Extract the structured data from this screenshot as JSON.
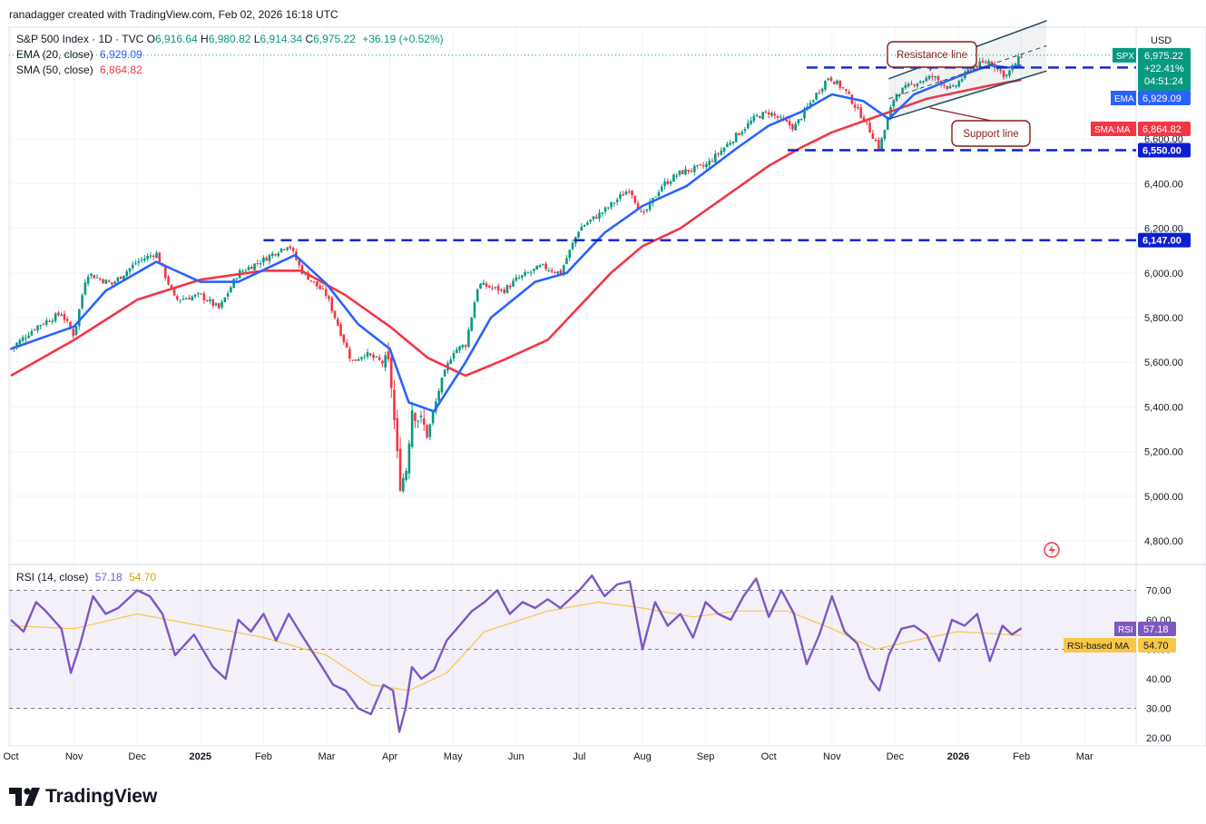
{
  "header": {
    "credit": "ranadagger created with TradingView.com, Feb 02, 2026 16:18 UTC"
  },
  "legend": {
    "symbol": "S&P 500 Index · 1D · TVC",
    "ohlc": [
      {
        "k": "O",
        "v": "6,916.64"
      },
      {
        "k": "H",
        "v": "6,980.82"
      },
      {
        "k": "L",
        "v": "6,914.34"
      },
      {
        "k": "C",
        "v": "6,975.22"
      }
    ],
    "change": "+36.19 (+0.52%)",
    "ema_label": "EMA (20, close)",
    "ema_value": "6,929.09",
    "sma_label": "SMA (50, close)",
    "sma_value": "6,864.82",
    "rsi_label": "RSI (14, close)",
    "rsi_value": "57.18",
    "rsi_ma_value": "54.70"
  },
  "logo": {
    "text": "TradingView"
  },
  "colors": {
    "up": "#089981",
    "down": "#f23645",
    "ema": "#2962ff",
    "sma": "#f23645",
    "level": "#0d1fd1",
    "rsi": "#7e57c2",
    "rsi_ma": "#f7c747",
    "channel": "#1f4f5f"
  },
  "chart_data": [
    {
      "type": "candlestick",
      "title": "S&P 500 Index · 1D · TVC",
      "currency": "USD",
      "ylim": [
        4700,
        7100
      ],
      "y_ticks": [
        "4,800.00",
        "5,000.00",
        "5,200.00",
        "5,400.00",
        "5,600.00",
        "5,800.00",
        "6,000.00",
        "6,200.00",
        "6,400.00",
        "6,600.00"
      ],
      "x_labels": [
        "Oct",
        "Nov",
        "Dec",
        "2025",
        "Feb",
        "Mar",
        "Apr",
        "May",
        "Jun",
        "Jul",
        "Aug",
        "Sep",
        "Oct",
        "Nov",
        "Dec",
        "2026",
        "Feb",
        "Mar"
      ],
      "x_label_months": [
        0,
        1,
        2,
        3,
        4,
        5,
        6,
        7,
        8,
        9,
        10,
        11,
        12,
        13,
        14,
        15,
        16,
        17
      ],
      "close_path": [
        {
          "m": 0.0,
          "c": 5660
        },
        {
          "m": 0.4,
          "c": 5760
        },
        {
          "m": 0.8,
          "c": 5820
        },
        {
          "m": 1.0,
          "c": 5720
        },
        {
          "m": 1.2,
          "c": 6000
        },
        {
          "m": 1.6,
          "c": 5950
        },
        {
          "m": 2.0,
          "c": 6050
        },
        {
          "m": 2.3,
          "c": 6090
        },
        {
          "m": 2.6,
          "c": 5880
        },
        {
          "m": 3.0,
          "c": 5900
        },
        {
          "m": 3.3,
          "c": 5840
        },
        {
          "m": 3.6,
          "c": 6000
        },
        {
          "m": 4.0,
          "c": 6060
        },
        {
          "m": 4.4,
          "c": 6130
        },
        {
          "m": 4.6,
          "c": 6010
        },
        {
          "m": 5.0,
          "c": 5900
        },
        {
          "m": 5.4,
          "c": 5600
        },
        {
          "m": 5.6,
          "c": 5640
        },
        {
          "m": 6.0,
          "c": 5580
        },
        {
          "m": 6.15,
          "c": 5060
        },
        {
          "m": 6.25,
          "c": 5100
        },
        {
          "m": 6.35,
          "c": 5400
        },
        {
          "m": 6.6,
          "c": 5280
        },
        {
          "m": 6.8,
          "c": 5500
        },
        {
          "m": 7.0,
          "c": 5650
        },
        {
          "m": 7.2,
          "c": 5680
        },
        {
          "m": 7.4,
          "c": 5950
        },
        {
          "m": 7.8,
          "c": 5920
        },
        {
          "m": 8.0,
          "c": 5970
        },
        {
          "m": 8.4,
          "c": 6030
        },
        {
          "m": 8.7,
          "c": 6000
        },
        {
          "m": 9.0,
          "c": 6200
        },
        {
          "m": 9.4,
          "c": 6280
        },
        {
          "m": 9.8,
          "c": 6380
        },
        {
          "m": 10.0,
          "c": 6250
        },
        {
          "m": 10.3,
          "c": 6390
        },
        {
          "m": 10.6,
          "c": 6450
        },
        {
          "m": 11.0,
          "c": 6480
        },
        {
          "m": 11.5,
          "c": 6620
        },
        {
          "m": 11.8,
          "c": 6700
        },
        {
          "m": 12.0,
          "c": 6720
        },
        {
          "m": 12.4,
          "c": 6650
        },
        {
          "m": 12.7,
          "c": 6780
        },
        {
          "m": 12.95,
          "c": 6880
        },
        {
          "m": 13.2,
          "c": 6820
        },
        {
          "m": 13.5,
          "c": 6690
        },
        {
          "m": 13.75,
          "c": 6560
        },
        {
          "m": 14.0,
          "c": 6800
        },
        {
          "m": 14.3,
          "c": 6850
        },
        {
          "m": 14.6,
          "c": 6880
        },
        {
          "m": 14.9,
          "c": 6820
        },
        {
          "m": 15.2,
          "c": 6920
        },
        {
          "m": 15.5,
          "c": 6950
        },
        {
          "m": 15.75,
          "c": 6880
        },
        {
          "m": 16.0,
          "c": 6975
        }
      ],
      "ema20": [
        {
          "m": 0.0,
          "c": 5660
        },
        {
          "m": 1.0,
          "c": 5760
        },
        {
          "m": 1.5,
          "c": 5920
        },
        {
          "m": 2.3,
          "c": 6050
        },
        {
          "m": 3.0,
          "c": 5960
        },
        {
          "m": 3.6,
          "c": 5960
        },
        {
          "m": 4.5,
          "c": 6080
        },
        {
          "m": 5.0,
          "c": 5950
        },
        {
          "m": 5.5,
          "c": 5770
        },
        {
          "m": 6.0,
          "c": 5660
        },
        {
          "m": 6.3,
          "c": 5420
        },
        {
          "m": 6.7,
          "c": 5380
        },
        {
          "m": 7.2,
          "c": 5600
        },
        {
          "m": 7.6,
          "c": 5800
        },
        {
          "m": 8.3,
          "c": 5960
        },
        {
          "m": 8.8,
          "c": 6000
        },
        {
          "m": 9.4,
          "c": 6180
        },
        {
          "m": 10.0,
          "c": 6300
        },
        {
          "m": 10.7,
          "c": 6390
        },
        {
          "m": 11.5,
          "c": 6560
        },
        {
          "m": 12.0,
          "c": 6660
        },
        {
          "m": 12.5,
          "c": 6720
        },
        {
          "m": 13.0,
          "c": 6800
        },
        {
          "m": 13.5,
          "c": 6770
        },
        {
          "m": 13.9,
          "c": 6690
        },
        {
          "m": 14.3,
          "c": 6800
        },
        {
          "m": 15.0,
          "c": 6880
        },
        {
          "m": 15.5,
          "c": 6930
        },
        {
          "m": 15.8,
          "c": 6920
        },
        {
          "m": 16.0,
          "c": 6929
        }
      ],
      "sma50": [
        {
          "m": 0.0,
          "c": 5540
        },
        {
          "m": 1.0,
          "c": 5700
        },
        {
          "m": 2.0,
          "c": 5880
        },
        {
          "m": 3.0,
          "c": 5970
        },
        {
          "m": 4.0,
          "c": 6010
        },
        {
          "m": 4.6,
          "c": 6010
        },
        {
          "m": 5.3,
          "c": 5900
        },
        {
          "m": 6.0,
          "c": 5760
        },
        {
          "m": 6.6,
          "c": 5620
        },
        {
          "m": 7.2,
          "c": 5540
        },
        {
          "m": 7.8,
          "c": 5610
        },
        {
          "m": 8.5,
          "c": 5700
        },
        {
          "m": 9.0,
          "c": 5850
        },
        {
          "m": 9.5,
          "c": 6000
        },
        {
          "m": 10.0,
          "c": 6120
        },
        {
          "m": 10.6,
          "c": 6200
        },
        {
          "m": 11.5,
          "c": 6380
        },
        {
          "m": 12.0,
          "c": 6480
        },
        {
          "m": 12.5,
          "c": 6560
        },
        {
          "m": 13.0,
          "c": 6630
        },
        {
          "m": 13.5,
          "c": 6680
        },
        {
          "m": 14.0,
          "c": 6730
        },
        {
          "m": 14.5,
          "c": 6780
        },
        {
          "m": 15.0,
          "c": 6810
        },
        {
          "m": 15.5,
          "c": 6840
        },
        {
          "m": 16.0,
          "c": 6865
        }
      ],
      "levels": [
        {
          "label": "6,920.00",
          "value": 6920,
          "from_m": 12.6
        },
        {
          "label": "6,550.00",
          "value": 6550,
          "from_m": 12.3
        },
        {
          "label": "6,147.00",
          "value": 6147,
          "from_m": 4.0
        }
      ],
      "channel": {
        "upper": [
          {
            "m": 13.9,
            "c": 6870
          },
          {
            "m": 16.4,
            "c": 7130
          }
        ],
        "lower": [
          {
            "m": 13.9,
            "c": 6690
          },
          {
            "m": 16.4,
            "c": 6905
          }
        ],
        "mid": [
          {
            "m": 13.9,
            "c": 6780
          },
          {
            "m": 16.4,
            "c": 7018
          }
        ]
      },
      "annotations": [
        {
          "text": "Resistance line",
          "target_m": 14.55,
          "target_c": 6905
        },
        {
          "text": "Support line",
          "target_m": 14.55,
          "target_c": 6740
        }
      ],
      "price_tags": [
        {
          "name": "SPX",
          "lines": [
            "6,975.22",
            "+22.41%",
            "04:51:24"
          ],
          "price": 6975.22
        },
        {
          "name": "EMA",
          "value": "6,929.09",
          "price": 6929.09
        },
        {
          "name": "SMA:MA",
          "value": "6,864.82",
          "price": 6864.82
        }
      ]
    },
    {
      "type": "line",
      "title": "RSI (14, close)",
      "ylim": [
        18,
        77
      ],
      "y_ticks": [
        "20.00",
        "30.00",
        "40.00",
        "50.00",
        "60.00",
        "70.00"
      ],
      "bands": {
        "upper": 70,
        "middle": 50,
        "lower": 30
      },
      "series": [
        {
          "name": "RSI",
          "last": "57.18",
          "points": [
            {
              "m": 0.0,
              "v": 60
            },
            {
              "m": 0.2,
              "v": 56
            },
            {
              "m": 0.4,
              "v": 66
            },
            {
              "m": 0.55,
              "v": 63
            },
            {
              "m": 0.8,
              "v": 57
            },
            {
              "m": 0.95,
              "v": 42
            },
            {
              "m": 1.1,
              "v": 52
            },
            {
              "m": 1.3,
              "v": 68
            },
            {
              "m": 1.5,
              "v": 62
            },
            {
              "m": 1.7,
              "v": 64
            },
            {
              "m": 2.0,
              "v": 70
            },
            {
              "m": 2.2,
              "v": 68
            },
            {
              "m": 2.4,
              "v": 62
            },
            {
              "m": 2.6,
              "v": 48
            },
            {
              "m": 2.9,
              "v": 55
            },
            {
              "m": 3.2,
              "v": 44
            },
            {
              "m": 3.4,
              "v": 40
            },
            {
              "m": 3.6,
              "v": 60
            },
            {
              "m": 3.8,
              "v": 56
            },
            {
              "m": 4.0,
              "v": 62
            },
            {
              "m": 4.2,
              "v": 53
            },
            {
              "m": 4.4,
              "v": 62
            },
            {
              "m": 4.6,
              "v": 55
            },
            {
              "m": 4.9,
              "v": 45
            },
            {
              "m": 5.1,
              "v": 38
            },
            {
              "m": 5.3,
              "v": 36
            },
            {
              "m": 5.5,
              "v": 30
            },
            {
              "m": 5.7,
              "v": 28
            },
            {
              "m": 5.9,
              "v": 38
            },
            {
              "m": 6.05,
              "v": 36
            },
            {
              "m": 6.15,
              "v": 22
            },
            {
              "m": 6.25,
              "v": 30
            },
            {
              "m": 6.35,
              "v": 44
            },
            {
              "m": 6.5,
              "v": 40
            },
            {
              "m": 6.7,
              "v": 43
            },
            {
              "m": 6.9,
              "v": 53
            },
            {
              "m": 7.1,
              "v": 58
            },
            {
              "m": 7.3,
              "v": 63
            },
            {
              "m": 7.5,
              "v": 66
            },
            {
              "m": 7.7,
              "v": 70
            },
            {
              "m": 7.9,
              "v": 62
            },
            {
              "m": 8.1,
              "v": 66
            },
            {
              "m": 8.3,
              "v": 64
            },
            {
              "m": 8.5,
              "v": 67
            },
            {
              "m": 8.7,
              "v": 64
            },
            {
              "m": 9.0,
              "v": 70
            },
            {
              "m": 9.2,
              "v": 75
            },
            {
              "m": 9.4,
              "v": 68
            },
            {
              "m": 9.6,
              "v": 72
            },
            {
              "m": 9.8,
              "v": 73
            },
            {
              "m": 10.0,
              "v": 50
            },
            {
              "m": 10.2,
              "v": 66
            },
            {
              "m": 10.4,
              "v": 58
            },
            {
              "m": 10.6,
              "v": 62
            },
            {
              "m": 10.8,
              "v": 54
            },
            {
              "m": 11.0,
              "v": 66
            },
            {
              "m": 11.2,
              "v": 62
            },
            {
              "m": 11.4,
              "v": 60
            },
            {
              "m": 11.6,
              "v": 68
            },
            {
              "m": 11.8,
              "v": 74
            },
            {
              "m": 12.0,
              "v": 61
            },
            {
              "m": 12.2,
              "v": 70
            },
            {
              "m": 12.4,
              "v": 62
            },
            {
              "m": 12.6,
              "v": 45
            },
            {
              "m": 12.8,
              "v": 55
            },
            {
              "m": 13.0,
              "v": 68
            },
            {
              "m": 13.2,
              "v": 56
            },
            {
              "m": 13.4,
              "v": 52
            },
            {
              "m": 13.6,
              "v": 40
            },
            {
              "m": 13.75,
              "v": 36
            },
            {
              "m": 13.9,
              "v": 48
            },
            {
              "m": 14.1,
              "v": 57
            },
            {
              "m": 14.3,
              "v": 58
            },
            {
              "m": 14.5,
              "v": 55
            },
            {
              "m": 14.7,
              "v": 46
            },
            {
              "m": 14.9,
              "v": 60
            },
            {
              "m": 15.1,
              "v": 58
            },
            {
              "m": 15.3,
              "v": 62
            },
            {
              "m": 15.5,
              "v": 46
            },
            {
              "m": 15.7,
              "v": 58
            },
            {
              "m": 15.85,
              "v": 55
            },
            {
              "m": 16.0,
              "v": 57.18
            }
          ]
        },
        {
          "name": "RSI-based MA",
          "last": "54.70",
          "points": [
            {
              "m": 0.0,
              "v": 58
            },
            {
              "m": 1.0,
              "v": 57
            },
            {
              "m": 2.0,
              "v": 62
            },
            {
              "m": 3.0,
              "v": 58
            },
            {
              "m": 4.0,
              "v": 54
            },
            {
              "m": 5.0,
              "v": 48
            },
            {
              "m": 5.7,
              "v": 38
            },
            {
              "m": 6.3,
              "v": 36
            },
            {
              "m": 6.9,
              "v": 42
            },
            {
              "m": 7.5,
              "v": 56
            },
            {
              "m": 8.5,
              "v": 63
            },
            {
              "m": 9.3,
              "v": 66
            },
            {
              "m": 10.0,
              "v": 64
            },
            {
              "m": 10.8,
              "v": 61
            },
            {
              "m": 11.5,
              "v": 63
            },
            {
              "m": 12.3,
              "v": 63
            },
            {
              "m": 13.0,
              "v": 57
            },
            {
              "m": 13.7,
              "v": 50
            },
            {
              "m": 14.3,
              "v": 53
            },
            {
              "m": 15.0,
              "v": 56
            },
            {
              "m": 16.0,
              "v": 54.7
            }
          ]
        }
      ],
      "price_tags": [
        {
          "name": "RSI",
          "value": "57.18"
        },
        {
          "name": "RSI-based MA",
          "value": "54.70"
        }
      ]
    }
  ]
}
